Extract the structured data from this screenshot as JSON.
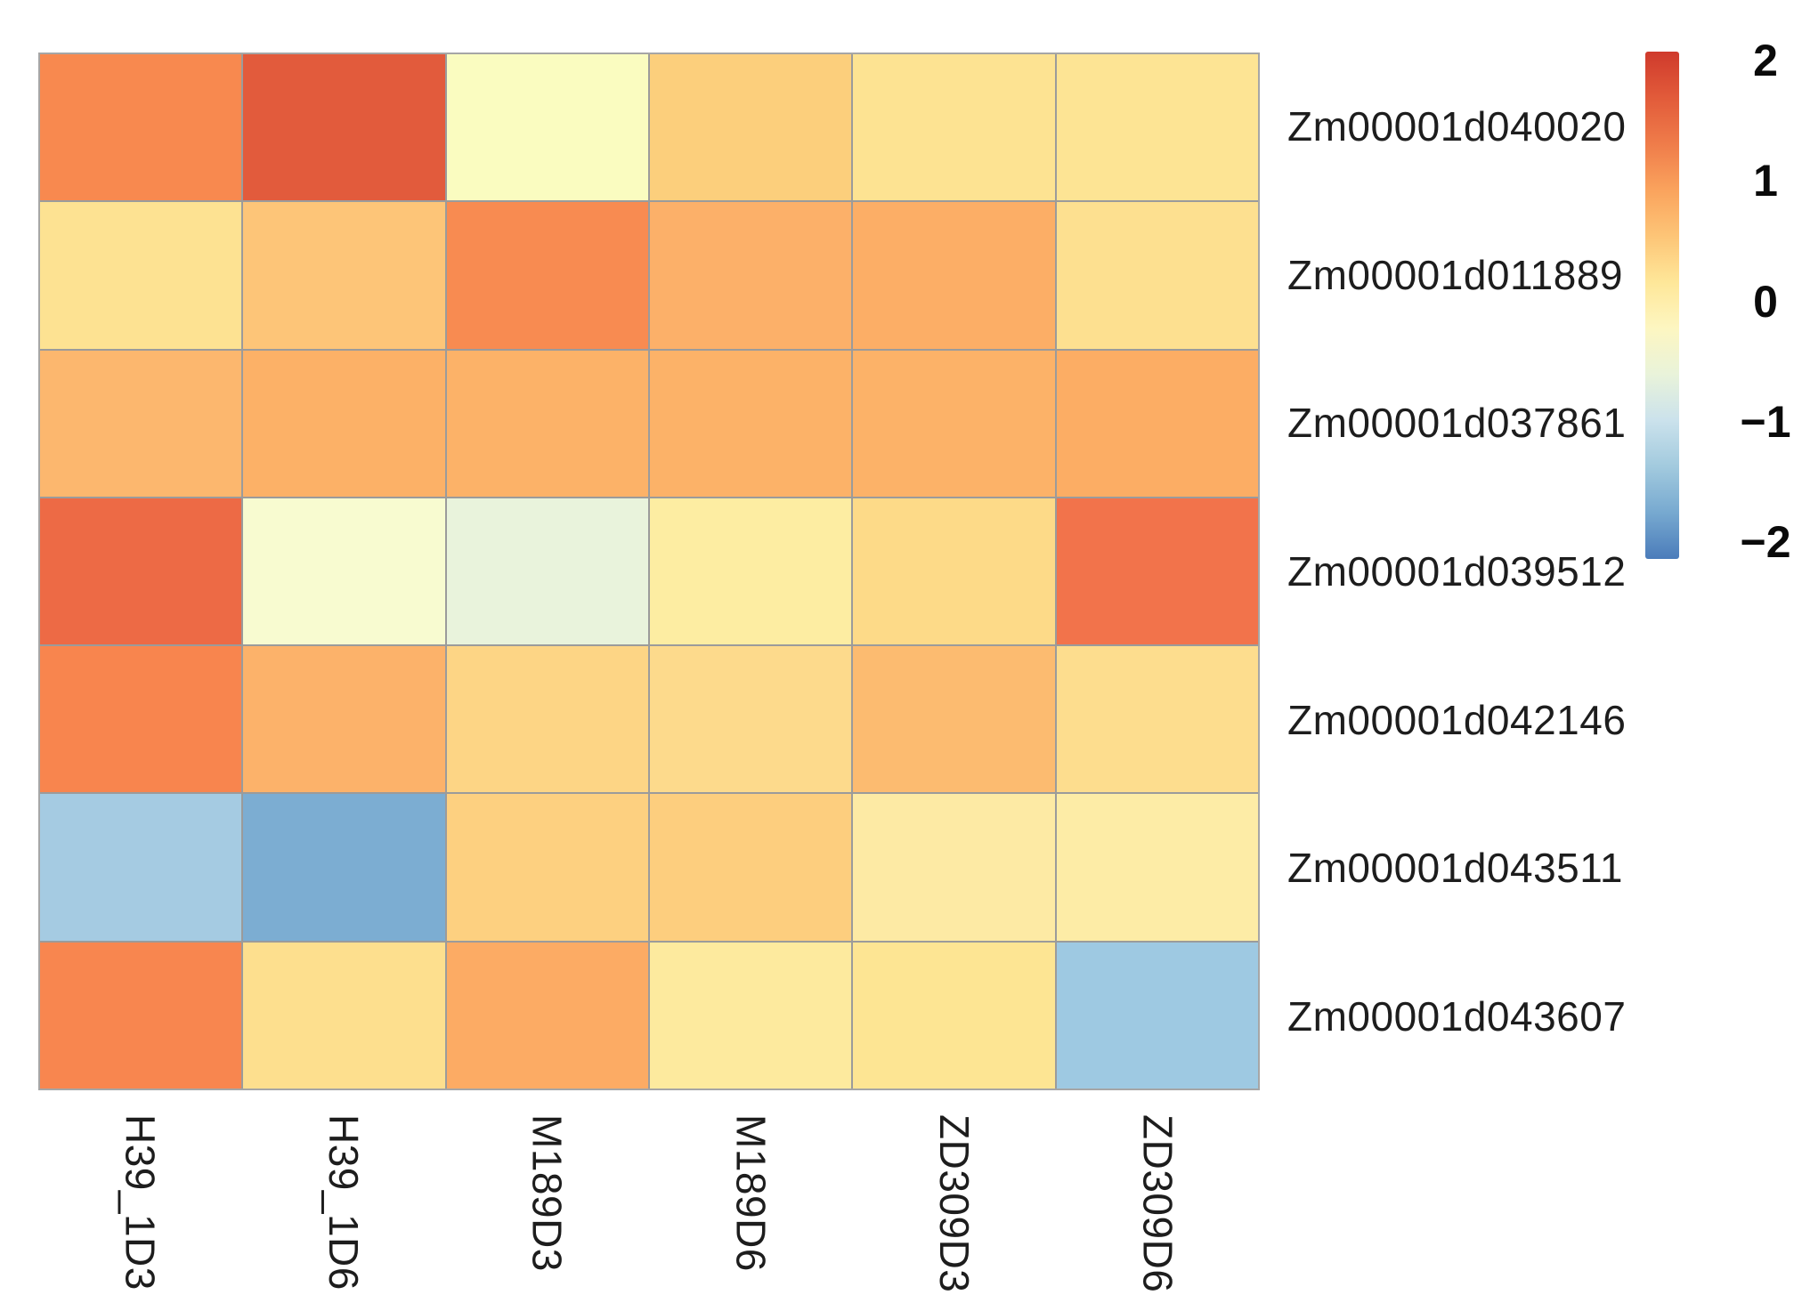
{
  "figure": {
    "background_color": "#ffffff",
    "grid_line_color": "#9b9b9b",
    "label_color": "#1d1d1d"
  },
  "chart_data": {
    "type": "heatmap",
    "title": "",
    "xlabel": "",
    "ylabel": "",
    "columns": [
      "H39_1D3",
      "H39_1D6",
      "M189D3",
      "M189D6",
      "ZD309D3",
      "ZD309D6"
    ],
    "rows": [
      "Zm00001d040020",
      "Zm00001d011889",
      "Zm00001d037861",
      "Zm00001d039512",
      "Zm00001d042146",
      "Zm00001d043511",
      "Zm00001d043607"
    ],
    "values": [
      [
        1.3,
        1.8,
        0.0,
        0.55,
        0.35,
        0.33
      ],
      [
        0.35,
        0.6,
        1.25,
        0.8,
        0.82,
        0.37
      ],
      [
        0.72,
        0.78,
        0.78,
        0.78,
        0.78,
        0.85
      ],
      [
        1.6,
        -0.05,
        -0.25,
        0.22,
        0.45,
        1.5
      ],
      [
        1.35,
        0.78,
        0.48,
        0.43,
        0.68,
        0.4
      ],
      [
        -1.1,
        -1.5,
        0.52,
        0.55,
        0.25,
        0.22
      ],
      [
        1.3,
        0.38,
        0.85,
        0.25,
        0.32,
        -1.15
      ]
    ],
    "cell_colors": [
      [
        "#f8894f",
        "#e25b3c",
        "#fafcc0",
        "#fccf7c",
        "#fde392",
        "#fde494"
      ],
      [
        "#fde292",
        "#fdc578",
        "#f88b51",
        "#fcb069",
        "#fcae66",
        "#fde090"
      ],
      [
        "#fcb76e",
        "#fcb167",
        "#fcb268",
        "#fcb268",
        "#fcb268",
        "#fcad64"
      ],
      [
        "#ed6a45",
        "#f8fbd0",
        "#e9f3dc",
        "#fdeda2",
        "#fdda88",
        "#f2734b"
      ],
      [
        "#f8854e",
        "#fcb26a",
        "#fdd585",
        "#fdda8c",
        "#fcbb70",
        "#fddd8e"
      ],
      [
        "#a5cbe2",
        "#7cadd2",
        "#fdd080",
        "#fdce7e",
        "#fdeaa4",
        "#fdeca6"
      ],
      [
        "#f8864f",
        "#fddf8e",
        "#fcab64",
        "#fdea9e",
        "#fde593",
        "#9ec9e2"
      ]
    ],
    "value_scale": {
      "min": -2,
      "max": 2
    },
    "legend_position": "right",
    "grid": "on",
    "colorbar": {
      "orientation": "vertical",
      "ticks": [
        2,
        1,
        0,
        -1,
        -2
      ],
      "tick_labels": [
        "2",
        "1",
        "0",
        "−1",
        "−2"
      ],
      "gradient_top_to_bottom": [
        "#cf3a2c",
        "#e25b3a",
        "#ef7c4a",
        "#faa35d",
        "#fdc577",
        "#fee799",
        "#fdf6c1",
        "#e9f3da",
        "#cbe2ec",
        "#a2cade",
        "#77a9d0",
        "#4b7cba"
      ]
    }
  }
}
